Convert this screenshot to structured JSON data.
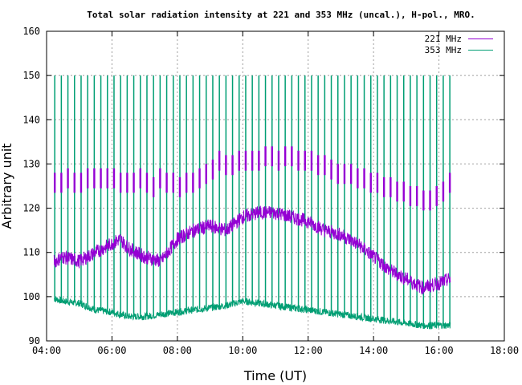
{
  "chart_data": {
    "type": "line",
    "title": "Total solar radiation intensity at 221 and 353 MHz (uncal.), H-pol., MRO.",
    "xlabel": "Time (UT)",
    "ylabel": "Arbitrary unit",
    "xlim": [
      "04:00",
      "18:00"
    ],
    "ylim": [
      90,
      160
    ],
    "x_ticks": [
      "04:00",
      "06:00",
      "08:00",
      "10:00",
      "12:00",
      "14:00",
      "16:00",
      "18:00"
    ],
    "y_ticks": [
      "90",
      "100",
      "110",
      "120",
      "130",
      "140",
      "150",
      "160"
    ],
    "grid": true,
    "legend_position": "top-right",
    "calibration_spikes_time_range": [
      "04:15",
      "16:20"
    ],
    "series": [
      {
        "name": "221 MHz",
        "color": "#9400d3",
        "baseline": {
          "x": [
            "04:15",
            "04:30",
            "05:00",
            "05:30",
            "06:00",
            "06:15",
            "06:30",
            "07:00",
            "07:30",
            "08:00",
            "08:30",
            "09:00",
            "09:30",
            "10:00",
            "10:30",
            "11:00",
            "11:30",
            "12:00",
            "12:30",
            "13:00",
            "13:30",
            "14:00",
            "14:30",
            "15:00",
            "15:30",
            "16:00",
            "16:20"
          ],
          "y": [
            108,
            109,
            108,
            110,
            112,
            113,
            111,
            109,
            108,
            113,
            115,
            116,
            115,
            118,
            119,
            119,
            118,
            117,
            115,
            114,
            112,
            109,
            106,
            104,
            102,
            103,
            104
          ]
        },
        "spike_peak_y": [
          128,
          128,
          129,
          128,
          128,
          129,
          129,
          129,
          129,
          129,
          128,
          128,
          128,
          129,
          128,
          127,
          129,
          128,
          128,
          127,
          128,
          128,
          129,
          130,
          131,
          133,
          132,
          132,
          133,
          133,
          133,
          133,
          134,
          134,
          133,
          134,
          134,
          133,
          133,
          133,
          132,
          132,
          131,
          130,
          130,
          130,
          129,
          129,
          128,
          128,
          127,
          127,
          126,
          126,
          125,
          125,
          124,
          124,
          125,
          126,
          128
        ]
      },
      {
        "name": "353 MHz",
        "color": "#009e73",
        "baseline": {
          "x": [
            "04:15",
            "04:30",
            "05:00",
            "05:30",
            "06:00",
            "06:15",
            "06:30",
            "07:00",
            "07:30",
            "08:00",
            "08:30",
            "09:00",
            "09:30",
            "10:00",
            "10:30",
            "11:00",
            "11:30",
            "12:00",
            "12:30",
            "13:00",
            "13:30",
            "14:00",
            "14:30",
            "15:00",
            "15:30",
            "16:00",
            "16:20"
          ],
          "y": [
            99.5,
            99,
            98.5,
            97,
            96.5,
            96,
            95.5,
            95.5,
            96,
            96.5,
            97,
            97.5,
            98,
            99,
            98.5,
            98,
            97.5,
            97,
            96.5,
            96,
            95.5,
            95,
            94.5,
            94,
            93.5,
            93.5,
            93.5
          ]
        },
        "spike_peak_y": 150
      }
    ]
  }
}
